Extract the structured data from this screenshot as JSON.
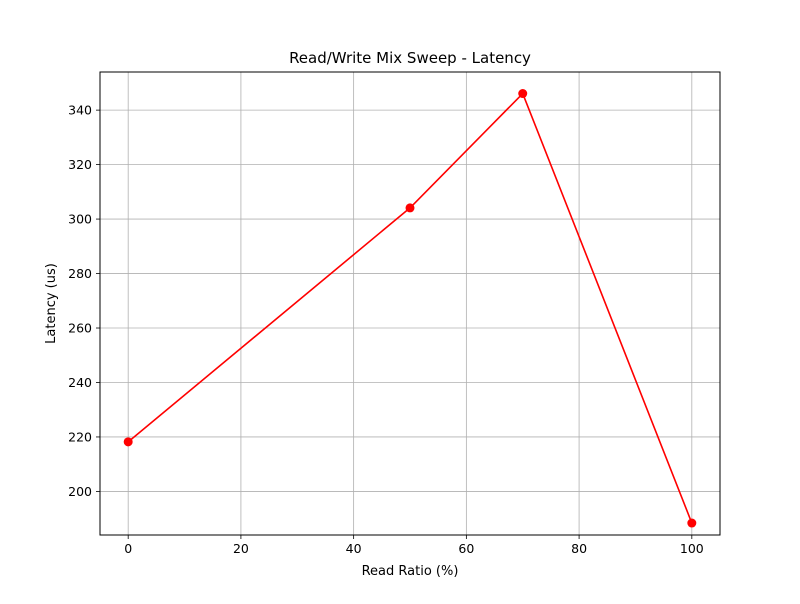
{
  "chart_data": {
    "type": "line",
    "title": "Read/Write Mix Sweep - Latency",
    "xlabel": "Read Ratio (%)",
    "ylabel": "Latency (us)",
    "xlim": [
      -5,
      105
    ],
    "ylim": [
      184,
      354
    ],
    "xticks": [
      0,
      20,
      40,
      60,
      80,
      100
    ],
    "yticks": [
      200,
      220,
      240,
      260,
      280,
      300,
      320,
      340
    ],
    "grid": true,
    "series": [
      {
        "x": [
          0,
          50,
          70,
          100
        ],
        "y": [
          218.2,
          304.1,
          346.1,
          188.4
        ],
        "color": "#ff0000",
        "marker": "circle"
      }
    ]
  }
}
